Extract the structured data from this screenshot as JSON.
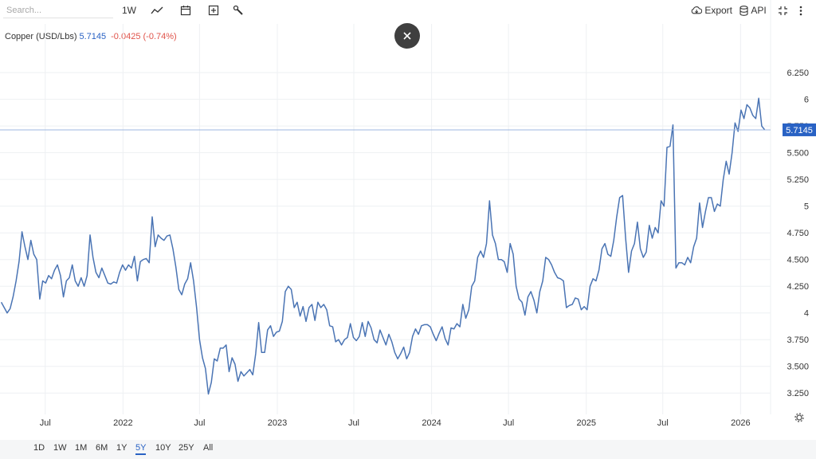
{
  "toolbar": {
    "search_placeholder": "Search...",
    "interval_label": "1W",
    "chart_type_icon": "line-chart-icon",
    "calendar_icon": "calendar-icon",
    "add_icon": "plus-square-icon",
    "tools_icon": "wrench-icon",
    "export_label": "Export",
    "export_icon": "cloud-download-icon",
    "api_label": "API",
    "api_icon": "database-icon",
    "fullscreen_icon": "fullscreen-icon",
    "more_icon": "more-vertical-icon"
  },
  "legend": {
    "symbol": "Copper (USD/Lbs)",
    "value": "5.7145",
    "change": "-0.0425 (-0.74%)"
  },
  "close_icon": "close-icon",
  "settings_icon": "gear-icon",
  "colors": {
    "line": "#4a74b4",
    "price_tag": "#2962c4",
    "negative": "#e0534a",
    "grid": "#eef0f3"
  },
  "range_buttons": [
    "1D",
    "1W",
    "1M",
    "6M",
    "1Y",
    "5Y",
    "10Y",
    "25Y",
    "All"
  ],
  "active_range": "5Y",
  "chart_data": {
    "type": "line",
    "series": [
      {
        "values": [
          [
            "2021-03-19",
            4.1
          ],
          [
            "2021-03-26",
            4.05
          ],
          [
            "2021-04-02",
            4.0
          ],
          [
            "2021-04-09",
            4.04
          ],
          [
            "2021-04-16",
            4.15
          ],
          [
            "2021-04-23",
            4.3
          ],
          [
            "2021-04-30",
            4.48
          ],
          [
            "2021-05-07",
            4.76
          ],
          [
            "2021-05-14",
            4.62
          ],
          [
            "2021-05-21",
            4.5
          ],
          [
            "2021-05-28",
            4.68
          ],
          [
            "2021-06-04",
            4.55
          ],
          [
            "2021-06-11",
            4.5
          ],
          [
            "2021-06-18",
            4.13
          ],
          [
            "2021-06-25",
            4.3
          ],
          [
            "2021-07-02",
            4.28
          ],
          [
            "2021-07-09",
            4.35
          ],
          [
            "2021-07-16",
            4.32
          ],
          [
            "2021-07-23",
            4.4
          ],
          [
            "2021-07-30",
            4.45
          ],
          [
            "2021-08-06",
            4.35
          ],
          [
            "2021-08-13",
            4.15
          ],
          [
            "2021-08-20",
            4.3
          ],
          [
            "2021-08-27",
            4.33
          ],
          [
            "2021-09-03",
            4.45
          ],
          [
            "2021-09-10",
            4.3
          ],
          [
            "2021-09-17",
            4.25
          ],
          [
            "2021-09-24",
            4.33
          ],
          [
            "2021-10-01",
            4.25
          ],
          [
            "2021-10-08",
            4.35
          ],
          [
            "2021-10-15",
            4.73
          ],
          [
            "2021-10-22",
            4.52
          ],
          [
            "2021-10-29",
            4.38
          ],
          [
            "2021-11-05",
            4.33
          ],
          [
            "2021-11-12",
            4.42
          ],
          [
            "2021-11-19",
            4.35
          ],
          [
            "2021-11-26",
            4.28
          ],
          [
            "2021-12-03",
            4.27
          ],
          [
            "2021-12-10",
            4.29
          ],
          [
            "2021-12-17",
            4.28
          ],
          [
            "2021-12-24",
            4.38
          ],
          [
            "2021-12-31",
            4.45
          ],
          [
            "2022-01-07",
            4.4
          ],
          [
            "2022-01-14",
            4.45
          ],
          [
            "2022-01-21",
            4.42
          ],
          [
            "2022-01-28",
            4.53
          ],
          [
            "2022-02-04",
            4.3
          ],
          [
            "2022-02-11",
            4.48
          ],
          [
            "2022-02-18",
            4.5
          ],
          [
            "2022-02-25",
            4.51
          ],
          [
            "2022-03-04",
            4.47
          ],
          [
            "2022-03-11",
            4.9
          ],
          [
            "2022-03-18",
            4.62
          ],
          [
            "2022-03-25",
            4.73
          ],
          [
            "2022-04-01",
            4.7
          ],
          [
            "2022-04-08",
            4.68
          ],
          [
            "2022-04-15",
            4.72
          ],
          [
            "2022-04-22",
            4.73
          ],
          [
            "2022-04-29",
            4.6
          ],
          [
            "2022-05-06",
            4.43
          ],
          [
            "2022-05-13",
            4.22
          ],
          [
            "2022-05-20",
            4.17
          ],
          [
            "2022-05-27",
            4.27
          ],
          [
            "2022-06-03",
            4.32
          ],
          [
            "2022-06-10",
            4.47
          ],
          [
            "2022-06-17",
            4.3
          ],
          [
            "2022-06-24",
            4.05
          ],
          [
            "2022-07-01",
            3.75
          ],
          [
            "2022-07-08",
            3.58
          ],
          [
            "2022-07-15",
            3.48
          ],
          [
            "2022-07-22",
            3.24
          ],
          [
            "2022-07-29",
            3.35
          ],
          [
            "2022-08-05",
            3.57
          ],
          [
            "2022-08-12",
            3.55
          ],
          [
            "2022-08-19",
            3.67
          ],
          [
            "2022-08-26",
            3.67
          ],
          [
            "2022-09-02",
            3.7
          ],
          [
            "2022-09-09",
            3.45
          ],
          [
            "2022-09-16",
            3.58
          ],
          [
            "2022-09-23",
            3.52
          ],
          [
            "2022-09-30",
            3.36
          ],
          [
            "2022-10-07",
            3.45
          ],
          [
            "2022-10-14",
            3.41
          ],
          [
            "2022-10-21",
            3.44
          ],
          [
            "2022-10-28",
            3.47
          ],
          [
            "2022-11-04",
            3.42
          ],
          [
            "2022-11-11",
            3.62
          ],
          [
            "2022-11-18",
            3.91
          ],
          [
            "2022-11-25",
            3.63
          ],
          [
            "2022-12-02",
            3.63
          ],
          [
            "2022-12-09",
            3.84
          ],
          [
            "2022-12-16",
            3.88
          ],
          [
            "2022-12-23",
            3.78
          ],
          [
            "2022-12-30",
            3.82
          ],
          [
            "2023-01-06",
            3.83
          ],
          [
            "2023-01-13",
            3.92
          ],
          [
            "2023-01-20",
            4.2
          ],
          [
            "2023-01-27",
            4.25
          ],
          [
            "2023-02-03",
            4.22
          ],
          [
            "2023-02-10",
            4.05
          ],
          [
            "2023-02-17",
            4.1
          ],
          [
            "2023-02-24",
            3.97
          ],
          [
            "2023-03-03",
            4.06
          ],
          [
            "2023-03-10",
            3.92
          ],
          [
            "2023-03-17",
            4.05
          ],
          [
            "2023-03-24",
            4.08
          ],
          [
            "2023-03-31",
            3.93
          ],
          [
            "2023-04-07",
            4.1
          ],
          [
            "2023-04-14",
            4.05
          ],
          [
            "2023-04-21",
            4.08
          ],
          [
            "2023-04-28",
            4.03
          ],
          [
            "2023-05-05",
            3.88
          ],
          [
            "2023-05-12",
            3.87
          ],
          [
            "2023-05-19",
            3.73
          ],
          [
            "2023-05-26",
            3.75
          ],
          [
            "2023-06-02",
            3.7
          ],
          [
            "2023-06-09",
            3.75
          ],
          [
            "2023-06-16",
            3.77
          ],
          [
            "2023-06-23",
            3.9
          ],
          [
            "2023-06-30",
            3.77
          ],
          [
            "2023-07-07",
            3.74
          ],
          [
            "2023-07-14",
            3.78
          ],
          [
            "2023-07-21",
            3.91
          ],
          [
            "2023-07-28",
            3.78
          ],
          [
            "2023-08-04",
            3.92
          ],
          [
            "2023-08-11",
            3.86
          ],
          [
            "2023-08-18",
            3.75
          ],
          [
            "2023-08-25",
            3.72
          ],
          [
            "2023-09-01",
            3.84
          ],
          [
            "2023-09-08",
            3.77
          ],
          [
            "2023-09-15",
            3.7
          ],
          [
            "2023-09-22",
            3.8
          ],
          [
            "2023-09-29",
            3.73
          ],
          [
            "2023-10-06",
            3.63
          ],
          [
            "2023-10-13",
            3.57
          ],
          [
            "2023-10-20",
            3.62
          ],
          [
            "2023-10-27",
            3.68
          ],
          [
            "2023-11-03",
            3.57
          ],
          [
            "2023-11-10",
            3.63
          ],
          [
            "2023-11-17",
            3.78
          ],
          [
            "2023-11-24",
            3.85
          ],
          [
            "2023-12-01",
            3.8
          ],
          [
            "2023-12-08",
            3.88
          ],
          [
            "2023-12-15",
            3.89
          ],
          [
            "2023-12-22",
            3.89
          ],
          [
            "2023-12-29",
            3.87
          ],
          [
            "2024-01-05",
            3.8
          ],
          [
            "2024-01-12",
            3.74
          ],
          [
            "2024-01-19",
            3.81
          ],
          [
            "2024-01-26",
            3.87
          ],
          [
            "2024-02-02",
            3.76
          ],
          [
            "2024-02-09",
            3.7
          ],
          [
            "2024-02-16",
            3.86
          ],
          [
            "2024-02-23",
            3.85
          ],
          [
            "2024-03-01",
            3.9
          ],
          [
            "2024-03-08",
            3.87
          ],
          [
            "2024-03-15",
            4.08
          ],
          [
            "2024-03-22",
            3.95
          ],
          [
            "2024-03-29",
            4.03
          ],
          [
            "2024-04-05",
            4.25
          ],
          [
            "2024-04-12",
            4.3
          ],
          [
            "2024-04-19",
            4.52
          ],
          [
            "2024-04-26",
            4.58
          ],
          [
            "2024-05-03",
            4.52
          ],
          [
            "2024-05-10",
            4.65
          ],
          [
            "2024-05-17",
            5.05
          ],
          [
            "2024-05-24",
            4.73
          ],
          [
            "2024-05-31",
            4.65
          ],
          [
            "2024-06-07",
            4.5
          ],
          [
            "2024-06-14",
            4.5
          ],
          [
            "2024-06-21",
            4.48
          ],
          [
            "2024-06-28",
            4.38
          ],
          [
            "2024-07-05",
            4.65
          ],
          [
            "2024-07-12",
            4.55
          ],
          [
            "2024-07-19",
            4.25
          ],
          [
            "2024-07-26",
            4.13
          ],
          [
            "2024-08-02",
            4.1
          ],
          [
            "2024-08-09",
            3.98
          ],
          [
            "2024-08-16",
            4.15
          ],
          [
            "2024-08-23",
            4.2
          ],
          [
            "2024-08-30",
            4.12
          ],
          [
            "2024-09-06",
            4.0
          ],
          [
            "2024-09-13",
            4.2
          ],
          [
            "2024-09-20",
            4.3
          ],
          [
            "2024-09-27",
            4.52
          ],
          [
            "2024-10-04",
            4.5
          ],
          [
            "2024-10-11",
            4.45
          ],
          [
            "2024-10-18",
            4.38
          ],
          [
            "2024-10-25",
            4.33
          ],
          [
            "2024-11-01",
            4.32
          ],
          [
            "2024-11-08",
            4.3
          ],
          [
            "2024-11-15",
            4.05
          ],
          [
            "2024-11-22",
            4.07
          ],
          [
            "2024-11-29",
            4.08
          ],
          [
            "2024-12-06",
            4.14
          ],
          [
            "2024-12-13",
            4.13
          ],
          [
            "2024-12-20",
            4.03
          ],
          [
            "2024-12-27",
            4.06
          ],
          [
            "2025-01-03",
            4.03
          ],
          [
            "2025-01-10",
            4.25
          ],
          [
            "2025-01-17",
            4.32
          ],
          [
            "2025-01-24",
            4.3
          ],
          [
            "2025-01-31",
            4.4
          ],
          [
            "2025-02-07",
            4.6
          ],
          [
            "2025-02-14",
            4.65
          ],
          [
            "2025-02-21",
            4.55
          ],
          [
            "2025-02-28",
            4.53
          ],
          [
            "2025-03-07",
            4.68
          ],
          [
            "2025-03-14",
            4.9
          ],
          [
            "2025-03-21",
            5.08
          ],
          [
            "2025-03-28",
            5.1
          ],
          [
            "2025-04-04",
            4.7
          ],
          [
            "2025-04-11",
            4.38
          ],
          [
            "2025-04-18",
            4.58
          ],
          [
            "2025-04-25",
            4.65
          ],
          [
            "2025-05-02",
            4.85
          ],
          [
            "2025-05-09",
            4.6
          ],
          [
            "2025-05-16",
            4.52
          ],
          [
            "2025-05-23",
            4.57
          ],
          [
            "2025-05-30",
            4.82
          ],
          [
            "2025-06-06",
            4.7
          ],
          [
            "2025-06-13",
            4.8
          ],
          [
            "2025-06-20",
            4.75
          ],
          [
            "2025-06-27",
            5.05
          ],
          [
            "2025-07-04",
            5.0
          ],
          [
            "2025-07-11",
            5.55
          ],
          [
            "2025-07-18",
            5.56
          ],
          [
            "2025-07-25",
            5.76
          ],
          [
            "2025-08-01",
            4.42
          ],
          [
            "2025-08-08",
            4.47
          ],
          [
            "2025-08-15",
            4.47
          ],
          [
            "2025-08-22",
            4.45
          ],
          [
            "2025-08-29",
            4.52
          ],
          [
            "2025-09-05",
            4.47
          ],
          [
            "2025-09-12",
            4.62
          ],
          [
            "2025-09-19",
            4.7
          ],
          [
            "2025-09-26",
            5.03
          ],
          [
            "2025-10-03",
            4.8
          ],
          [
            "2025-10-10",
            4.95
          ],
          [
            "2025-10-17",
            5.08
          ],
          [
            "2025-10-24",
            5.08
          ],
          [
            "2025-10-31",
            4.95
          ],
          [
            "2025-11-07",
            5.02
          ],
          [
            "2025-11-14",
            5.0
          ],
          [
            "2025-11-21",
            5.25
          ],
          [
            "2025-11-28",
            5.42
          ],
          [
            "2025-12-05",
            5.3
          ],
          [
            "2025-12-12",
            5.5
          ],
          [
            "2025-12-19",
            5.78
          ],
          [
            "2025-12-26",
            5.7
          ],
          [
            "2026-01-02",
            5.9
          ],
          [
            "2026-01-09",
            5.82
          ],
          [
            "2026-01-16",
            5.95
          ],
          [
            "2026-01-23",
            5.92
          ],
          [
            "2026-01-30",
            5.85
          ],
          [
            "2026-02-06",
            5.82
          ],
          [
            "2026-02-13",
            6.01
          ],
          [
            "2026-02-20",
            5.75
          ],
          [
            "2026-02-27",
            5.7145
          ]
        ]
      }
    ],
    "x_tick_labels": [
      [
        "2021-07-01",
        "Jul"
      ],
      [
        "2022-01-01",
        "2022"
      ],
      [
        "2022-07-01",
        "Jul"
      ],
      [
        "2023-01-01",
        "2023"
      ],
      [
        "2023-07-01",
        "Jul"
      ],
      [
        "2024-01-01",
        "2024"
      ],
      [
        "2024-07-01",
        "Jul"
      ],
      [
        "2025-01-01",
        "2025"
      ],
      [
        "2025-07-01",
        "Jul"
      ],
      [
        "2026-01-01",
        "2026"
      ]
    ],
    "y_ticks": [
      [
        3.25,
        "3.250"
      ],
      [
        3.5,
        "3.500"
      ],
      [
        3.75,
        "3.750"
      ],
      [
        4,
        "4"
      ],
      [
        4.25,
        "4.250"
      ],
      [
        4.5,
        "4.500"
      ],
      [
        4.75,
        "4.750"
      ],
      [
        5,
        "5"
      ],
      [
        5.25,
        "5.250"
      ],
      [
        5.5,
        "5.500"
      ],
      [
        5.75,
        "5.750"
      ],
      [
        6,
        "6"
      ],
      [
        6.25,
        "6.250"
      ]
    ],
    "ylim": [
      3.05,
      6.52
    ],
    "xlim": [
      "2021-03-16",
      "2026-03-13"
    ],
    "grid": true,
    "last_value": 5.7145,
    "last_value_label": "5.7145"
  }
}
